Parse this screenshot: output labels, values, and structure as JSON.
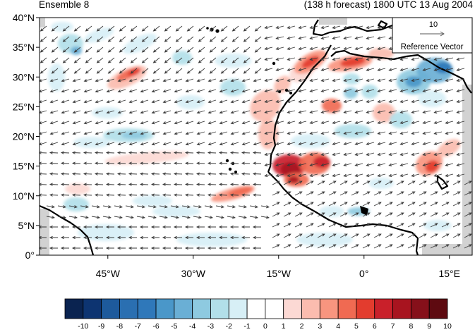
{
  "title_left": "Ensemble 8",
  "title_right": "(138 h forecast) 1800 UTC 13 Aug 2004",
  "map": {
    "lat_range": [
      0,
      40
    ],
    "lon_range": [
      -57,
      19
    ],
    "lat_labels": [
      "40°N",
      "35°N",
      "30°N",
      "25°N",
      "20°N",
      "15°N",
      "10°N",
      "5°N",
      "0°"
    ],
    "lat_values": [
      40,
      35,
      30,
      25,
      20,
      15,
      10,
      5,
      0
    ],
    "lon_labels": [
      "45°W",
      "30°W",
      "15°W",
      "0°",
      "15°E"
    ],
    "lon_values": [
      -45,
      -30,
      -15,
      0,
      15
    ],
    "field": "shaded anomaly with wind vectors"
  },
  "reference_vector": {
    "magnitude": "10",
    "label": "Reference Vector"
  },
  "colorbar": {
    "labels": [
      "-10",
      "-9",
      "-8",
      "-7",
      "-6",
      "-5",
      "-4",
      "-3",
      "-2",
      "-1",
      "0",
      "1",
      "2",
      "3",
      "4",
      "5",
      "6",
      "7",
      "8",
      "9",
      "10"
    ],
    "colors": [
      "#0a2350",
      "#0d3471",
      "#1d5a9c",
      "#2a6fb1",
      "#2f78ba",
      "#4a97c9",
      "#6aafd5",
      "#8ecae0",
      "#b2dfe9",
      "#d7eff6",
      "#ffffff",
      "#ffffff",
      "#fcd9d4",
      "#fbbcaf",
      "#f8957f",
      "#f06a52",
      "#e33c2e",
      "#c9202a",
      "#a8141f",
      "#86101a",
      "#5e0a10"
    ]
  },
  "colors": {
    "land_missing": "#d2d2d2",
    "coastline": "#000000",
    "vector": "#3a3a3a"
  }
}
